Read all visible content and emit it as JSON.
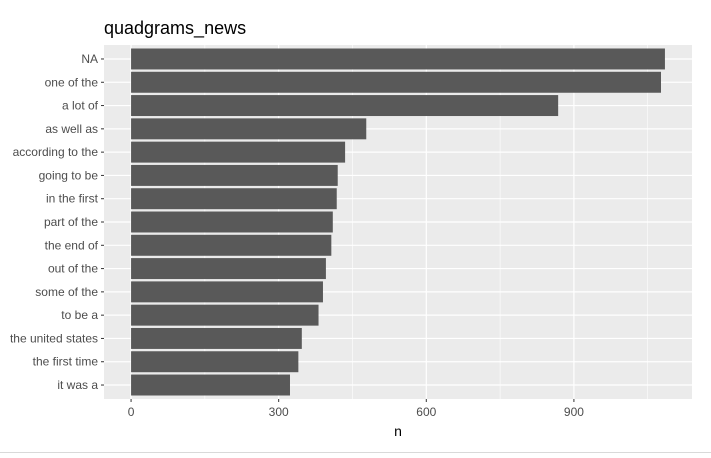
{
  "chart_data": {
    "type": "bar",
    "orientation": "horizontal",
    "title": "quadgrams_news",
    "xlabel": "n",
    "ylabel": "",
    "xlim": [
      -55,
      1140
    ],
    "x_ticks": [
      0,
      300,
      600,
      900
    ],
    "x_tick_labels": [
      "0",
      "300",
      "600",
      "900"
    ],
    "categories": [
      "NA",
      "one of the",
      "a lot of",
      "as well as",
      "according to the",
      "going to be",
      "in the first",
      "part of the",
      "the end of",
      "out of the",
      "some of the",
      "to be a",
      "the united states",
      "the first time",
      "it was a"
    ],
    "values": [
      1085,
      1077,
      868,
      478,
      435,
      420,
      418,
      410,
      407,
      396,
      390,
      381,
      347,
      340,
      323
    ],
    "grid": true,
    "panel_background": "#ebebeb",
    "grid_color": "#ffffff",
    "bar_color": "#595959"
  }
}
